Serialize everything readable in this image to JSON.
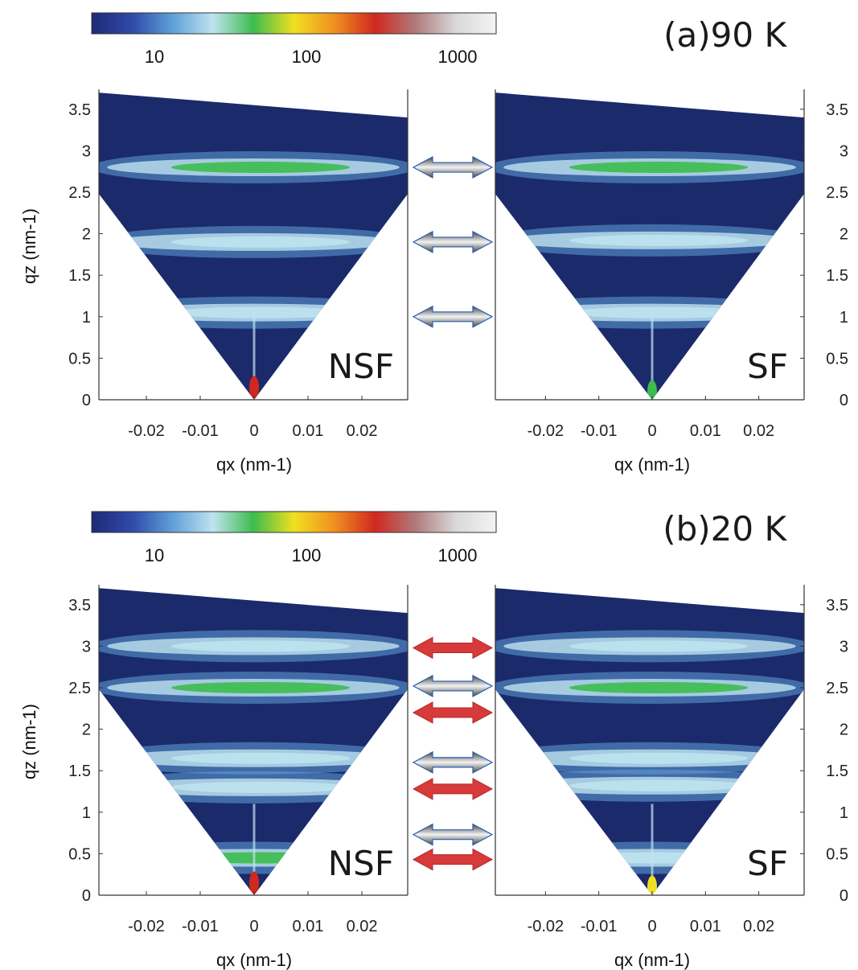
{
  "colorbar": {
    "ticks": [
      "10",
      "100",
      "1000"
    ],
    "tick_values": [
      10,
      100,
      1000
    ],
    "range": [
      4,
      2500
    ],
    "scale": "log",
    "stops": [
      "#1e2a78",
      "#2f4aa8",
      "#5fa0d8",
      "#bfe3f0",
      "#3cbc4e",
      "#f0e020",
      "#f09020",
      "#d0281e",
      "#b07a7a",
      "#d8d8d8",
      "#f4f4f4"
    ]
  },
  "panels": [
    {
      "title": "(a)90 K",
      "left_label": "NSF",
      "right_label": "SF",
      "arrows": [
        {
          "qz": 2.8,
          "type": "gray"
        },
        {
          "qz": 1.9,
          "type": "gray"
        },
        {
          "qz": 1.0,
          "type": "gray"
        }
      ]
    },
    {
      "title": "(b)20 K",
      "left_label": "NSF",
      "right_label": "SF",
      "arrows": [
        {
          "qz": 2.98,
          "type": "red"
        },
        {
          "qz": 2.52,
          "type": "gray"
        },
        {
          "qz": 2.2,
          "type": "red"
        },
        {
          "qz": 1.6,
          "type": "gray"
        },
        {
          "qz": 1.28,
          "type": "red"
        },
        {
          "qz": 0.73,
          "type": "gray"
        },
        {
          "qz": 0.43,
          "type": "red"
        }
      ]
    }
  ],
  "chart_data": [
    {
      "type": "heatmap",
      "title": "(a)90 K",
      "subplots": [
        {
          "label": "NSF",
          "bands": [
            {
              "qz": 2.8,
              "intensity": 45
            },
            {
              "qz": 1.9,
              "intensity": 35
            },
            {
              "qz": 1.05,
              "intensity": 25
            }
          ],
          "specular_peak": {
            "qz": 0.15,
            "intensity": 300
          }
        },
        {
          "label": "SF",
          "bands": [
            {
              "qz": 2.8,
              "intensity": 40
            },
            {
              "qz": 1.92,
              "intensity": 35
            },
            {
              "qz": 1.05,
              "intensity": 22
            }
          ],
          "specular_peak": {
            "qz": 0.1,
            "intensity": 40
          }
        }
      ],
      "xlabel": "qx (nm-1)",
      "ylabel": "qz (nm-1)",
      "xticks": [
        "-0.02",
        "-0.01",
        "0",
        "0.01",
        "0.02"
      ],
      "yticks": [
        "0",
        "0.5",
        "1",
        "1.5",
        "2",
        "2.5",
        "3",
        "3.5"
      ],
      "xlim": [
        -0.0295,
        0.0285
      ],
      "ylim": [
        0,
        3.7
      ]
    },
    {
      "type": "heatmap",
      "title": "(b)20 K",
      "subplots": [
        {
          "label": "NSF",
          "bands": [
            {
              "qz": 3.0,
              "intensity": 22
            },
            {
              "qz": 2.5,
              "intensity": 45
            },
            {
              "qz": 1.65,
              "intensity": 25
            },
            {
              "qz": 1.3,
              "intensity": 35
            },
            {
              "qz": 0.45,
              "intensity": 40
            }
          ],
          "specular_peak": {
            "qz": 0.15,
            "intensity": 300
          }
        },
        {
          "label": "SF",
          "bands": [
            {
              "qz": 3.0,
              "intensity": 20
            },
            {
              "qz": 2.5,
              "intensity": 45
            },
            {
              "qz": 1.65,
              "intensity": 22
            },
            {
              "qz": 1.32,
              "intensity": 35
            },
            {
              "qz": 0.45,
              "intensity": 35
            }
          ],
          "specular_peak": {
            "qz": 0.1,
            "intensity": 120
          }
        }
      ],
      "xlabel": "qx (nm-1)",
      "ylabel": "qz (nm-1)",
      "xticks": [
        "-0.02",
        "-0.01",
        "0",
        "0.01",
        "0.02"
      ],
      "yticks": [
        "0",
        "0.5",
        "1",
        "1.5",
        "2",
        "2.5",
        "3",
        "3.5"
      ],
      "xlim": [
        -0.0295,
        0.0285
      ],
      "ylim": [
        0,
        3.7
      ]
    }
  ]
}
